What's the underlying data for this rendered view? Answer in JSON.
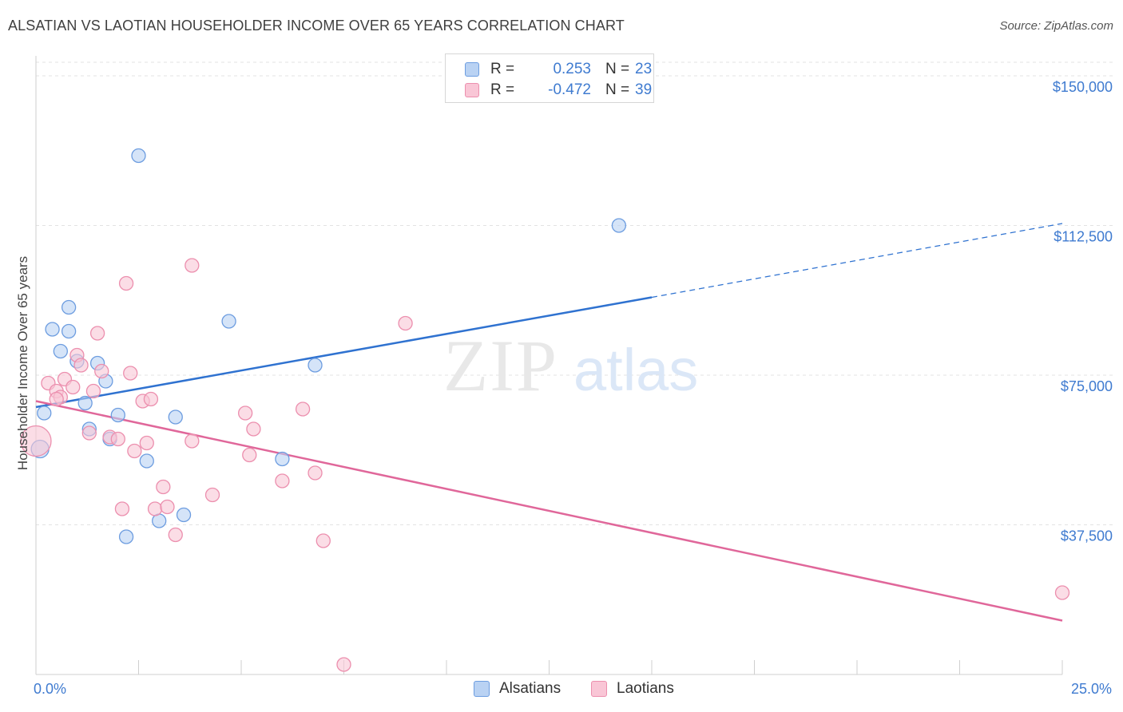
{
  "title": "ALSATIAN VS LAOTIAN HOUSEHOLDER INCOME OVER 65 YEARS CORRELATION CHART",
  "source": "Source: ZipAtlas.com",
  "watermark": {
    "part1": "ZIP",
    "part2": "atlas"
  },
  "legend": {
    "rows": [
      {
        "r_label": "R =",
        "r_value": "0.253",
        "n_label": "N =",
        "n_value": "23"
      },
      {
        "r_label": "R =",
        "r_value": "-0.472",
        "n_label": "N =",
        "n_value": "39"
      }
    ]
  },
  "bottom_legend": [
    "Alsatians",
    "Laotians"
  ],
  "colors": {
    "alsatian_fill": "#b9d2f3",
    "alsatian_stroke": "#6d9de0",
    "alsatian_line": "#2f72d0",
    "laotian_fill": "#f9c6d6",
    "laotian_stroke": "#ec8fae",
    "laotian_line": "#e0679a",
    "grid": "#e3e3e3",
    "tick_label": "#3f7bd0"
  },
  "chart_data": {
    "type": "scatter",
    "title": "ALSATIAN VS LAOTIAN HOUSEHOLDER INCOME OVER 65 YEARS CORRELATION CHART",
    "xlabel": "",
    "ylabel": "Householder Income Over 65 years",
    "xlim": [
      0,
      25
    ],
    "ylim": [
      0,
      155000
    ],
    "x_tick_labels": [
      {
        "value": 0,
        "label": "0.0%"
      },
      {
        "value": 25,
        "label": "25.0%"
      }
    ],
    "y_ticks": [
      {
        "value": 37500,
        "label": "$37,500"
      },
      {
        "value": 75000,
        "label": "$75,000"
      },
      {
        "value": 112500,
        "label": "$112,500"
      },
      {
        "value": 150000,
        "label": "$150,000"
      }
    ],
    "grid": true,
    "series": [
      {
        "name": "Alsatians",
        "r": 0.253,
        "n": 23,
        "points": [
          [
            0.1,
            56500
          ],
          [
            0.2,
            65500
          ],
          [
            0.4,
            86500
          ],
          [
            0.6,
            81000
          ],
          [
            0.8,
            92000
          ],
          [
            0.8,
            86000
          ],
          [
            1.0,
            78500
          ],
          [
            1.2,
            68000
          ],
          [
            1.3,
            61500
          ],
          [
            1.5,
            78000
          ],
          [
            1.7,
            73500
          ],
          [
            1.8,
            59000
          ],
          [
            2.0,
            65000
          ],
          [
            2.2,
            34500
          ],
          [
            2.5,
            130000
          ],
          [
            2.7,
            53500
          ],
          [
            3.0,
            38500
          ],
          [
            3.4,
            64500
          ],
          [
            3.6,
            40000
          ],
          [
            4.7,
            88500
          ],
          [
            6.0,
            54000
          ],
          [
            6.8,
            77500
          ],
          [
            14.2,
            112500
          ]
        ],
        "trend": {
          "x0": 0,
          "y0": 67000,
          "x1": 15,
          "y1": 94500,
          "dashed_to_x": 25,
          "dashed_to_y": 113000
        }
      },
      {
        "name": "Laotians",
        "r": -0.472,
        "n": 39,
        "points": [
          [
            0.0,
            58500
          ],
          [
            0.3,
            73000
          ],
          [
            0.5,
            71000
          ],
          [
            0.6,
            69500
          ],
          [
            0.7,
            74000
          ],
          [
            0.9,
            72000
          ],
          [
            1.0,
            80000
          ],
          [
            1.1,
            77500
          ],
          [
            1.3,
            60500
          ],
          [
            1.4,
            71000
          ],
          [
            1.5,
            85500
          ],
          [
            1.6,
            76000
          ],
          [
            1.8,
            59500
          ],
          [
            2.0,
            59000
          ],
          [
            2.1,
            41500
          ],
          [
            2.2,
            98000
          ],
          [
            2.3,
            75500
          ],
          [
            2.4,
            56000
          ],
          [
            2.6,
            68500
          ],
          [
            2.7,
            58000
          ],
          [
            2.8,
            69000
          ],
          [
            2.9,
            41500
          ],
          [
            3.1,
            47000
          ],
          [
            3.2,
            42000
          ],
          [
            3.4,
            35000
          ],
          [
            3.8,
            102500
          ],
          [
            3.8,
            58500
          ],
          [
            4.3,
            45000
          ],
          [
            5.1,
            65500
          ],
          [
            5.2,
            55000
          ],
          [
            5.3,
            61500
          ],
          [
            6.0,
            48500
          ],
          [
            6.5,
            66500
          ],
          [
            6.8,
            50500
          ],
          [
            7.0,
            33500
          ],
          [
            7.5,
            2500
          ],
          [
            9.0,
            88000
          ],
          [
            25.0,
            20500
          ],
          [
            0.5,
            69000
          ]
        ],
        "trend": {
          "x0": 0,
          "y0": 68500,
          "x1": 25,
          "y1": 13500
        }
      }
    ]
  }
}
